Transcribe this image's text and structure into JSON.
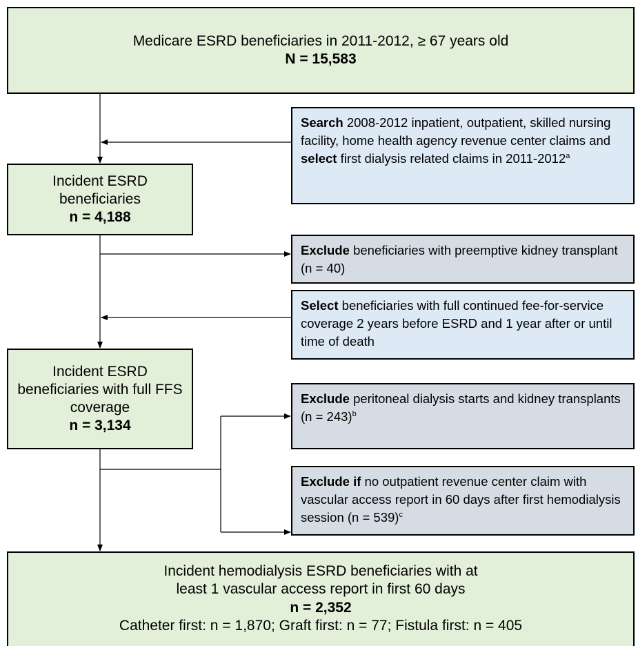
{
  "nodes": [
    {
      "title": "Medicare ESRD beneficiaries in 2011-2012, ≥ 67 years old",
      "count": "N = 15,583"
    },
    {
      "title": "Incident ESRD beneficiaries",
      "count": "n = 4,188"
    },
    {
      "title": "Incident ESRD beneficiaries with full FFS coverage",
      "count": "n = 3,134"
    },
    {
      "title": "Incident hemodialysis ESRD beneficiaries with at least 1 vascular access report in first 60 days",
      "count": "n = 2,352",
      "detail": "Catheter first: n = 1,870; Graft first: n = 77; Fistula first: n = 405"
    }
  ],
  "steps": [
    {
      "segments": [
        {
          "strong": "Search"
        },
        {
          "text": "2008-2012 inpatient, outpatient, skilled nursing facility, home health agency revenue center claims and"
        },
        {
          "strong": "select"
        },
        {
          "text": "first dialysis related claims in 2011-2012"
        }
      ],
      "note": "a"
    },
    {
      "segments": [
        {
          "strong": "Exclude"
        },
        {
          "text": "beneficiaries with preemptive kidney transplant (n = 40)"
        }
      ]
    },
    {
      "segments": [
        {
          "strong": "Select"
        },
        {
          "text": "beneficiaries with full continued fee-for-service coverage 2 years before ESRD and 1 year after or until time of death"
        }
      ]
    },
    {
      "segments": [
        {
          "strong": "Exclude"
        },
        {
          "text": "peritoneal dialysis starts and kidney transplants (n = 243)"
        }
      ],
      "note": "b"
    },
    {
      "segments": [
        {
          "strong": "Exclude if"
        },
        {
          "text": "no outpatient revenue center claim with vascular access report in 60 days after first hemodialysis session (n = 539)"
        }
      ],
      "note": "c"
    }
  ]
}
